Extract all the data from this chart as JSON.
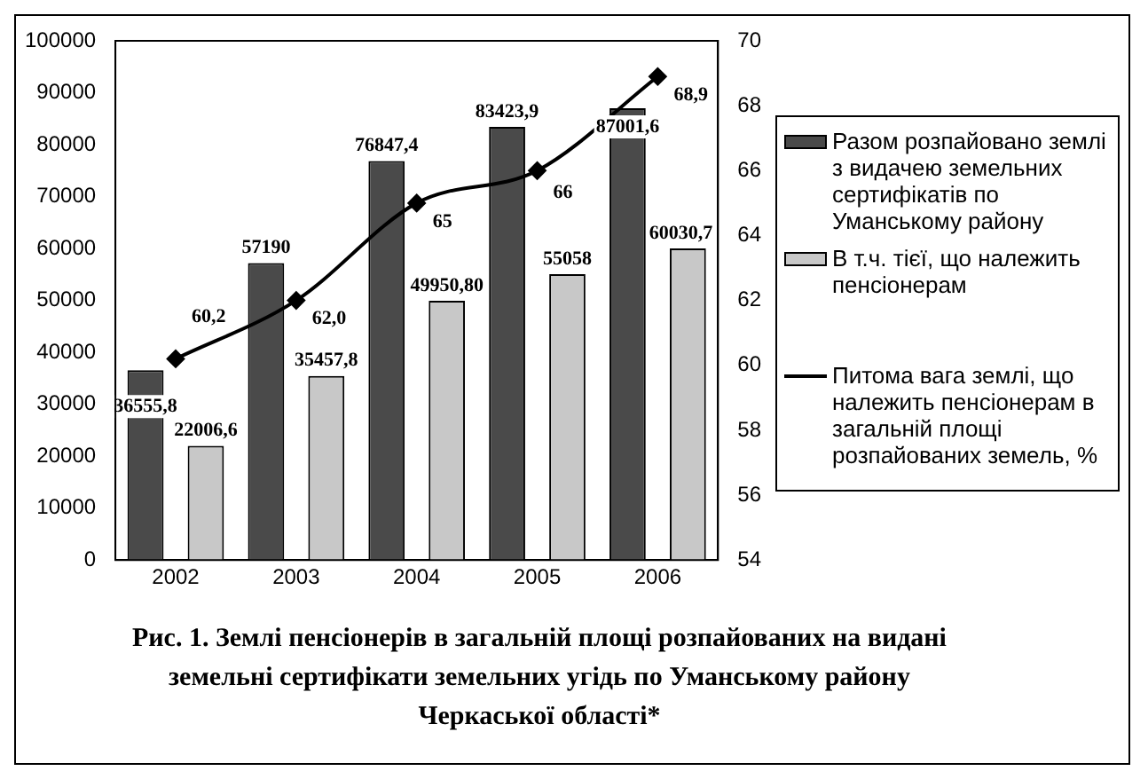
{
  "chart_data": {
    "type": "bar",
    "title": "Рис. 1. Землі пенсіонерів в загальній площі розпайованих на видані земельні сертифікати  земельних угідь  по Уманському району Черкаської області*",
    "categories": [
      "2002",
      "2003",
      "2004",
      "2005",
      "2006"
    ],
    "series": [
      {
        "name": "Разом розпайовано землі з видачею земельних сертифікатів по Уманському району",
        "color": "#4a4a4a",
        "values": [
          36555.8,
          57190,
          76847.4,
          83423.9,
          87001.6
        ],
        "value_labels": [
          "36555,8",
          "57190",
          "76847,4",
          "83423,9",
          "87001,6"
        ]
      },
      {
        "name": "В т.ч. тієї, що належить пенсіонерам",
        "color": "#c8c8c8",
        "values": [
          22006.6,
          35457.8,
          49950.8,
          55058,
          60030.7
        ],
        "value_labels": [
          "22006,6",
          "35457,8",
          "49950,80",
          "55058",
          "60030,7"
        ]
      },
      {
        "name": "Питома вага землі, що належить пенсіонерам в загальній площі розпайованих земель, %",
        "type": "line",
        "axis": "y2",
        "color": "#000000",
        "marker": "diamond",
        "values": [
          60.2,
          62.0,
          65,
          66,
          68.9
        ],
        "value_labels": [
          "60,2",
          "62,0",
          "65",
          "66",
          "68,9"
        ]
      }
    ],
    "ylim": [
      0,
      100000
    ],
    "yticks": [
      0,
      10000,
      20000,
      30000,
      40000,
      50000,
      60000,
      70000,
      80000,
      90000,
      100000
    ],
    "y2lim": [
      54,
      70
    ],
    "y2ticks": [
      54,
      56,
      58,
      60,
      62,
      64,
      66,
      68,
      70
    ],
    "grid": false,
    "legend": "right"
  }
}
